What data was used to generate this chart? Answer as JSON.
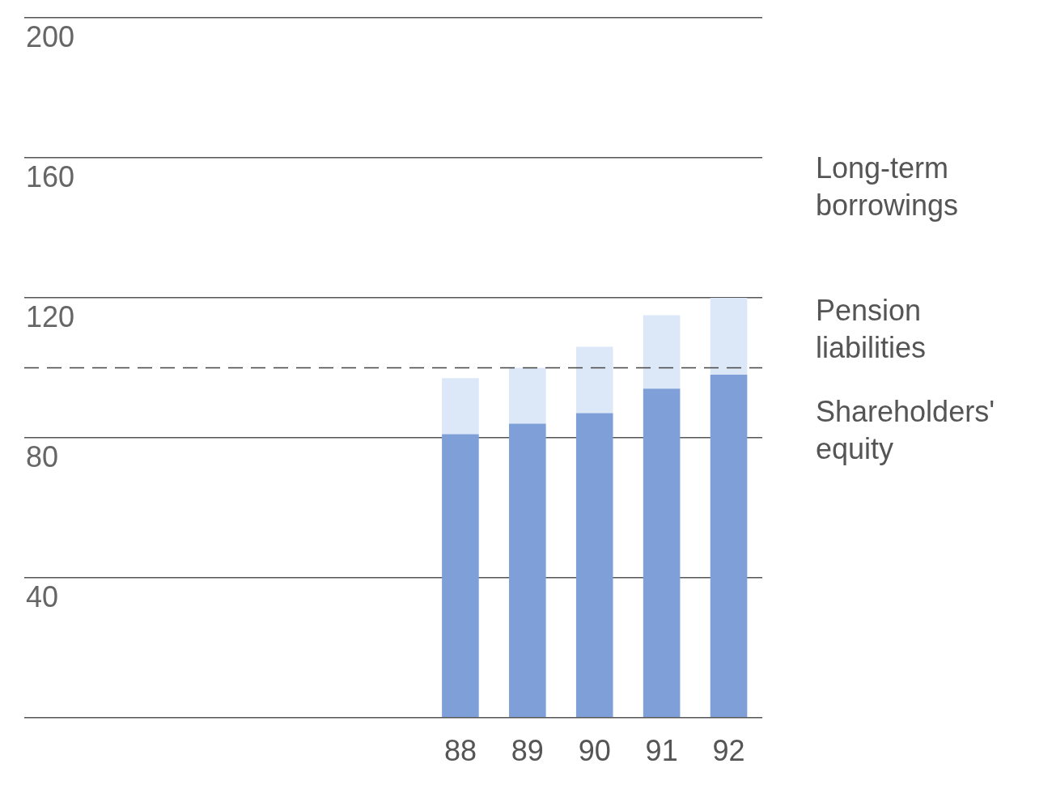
{
  "chart_data": {
    "type": "bar",
    "stacked": true,
    "categories": [
      null,
      null,
      null,
      null,
      null,
      null,
      "88",
      "89",
      "90",
      "91",
      "92"
    ],
    "series": [
      {
        "name": "Shareholders' equity",
        "color": "#7f9fd8",
        "values": [
          null,
          null,
          null,
          null,
          null,
          null,
          81,
          84,
          87,
          94,
          98
        ]
      },
      {
        "name": "Pension liabilities",
        "color": "#dce8f7",
        "values": [
          null,
          null,
          null,
          null,
          null,
          null,
          16,
          16,
          19,
          21,
          22
        ]
      }
    ],
    "ylim": [
      0,
      200
    ],
    "yticks": [
      {
        "value": 0,
        "label": null
      },
      40,
      80,
      120,
      160,
      200
    ],
    "grid": "y",
    "legend": false,
    "ref_lines": [
      {
        "axis": "y",
        "value": 100,
        "line_style": "dashed",
        "color": "#444444"
      }
    ],
    "annotations": [
      "Long-term borrowings"
    ]
  }
}
